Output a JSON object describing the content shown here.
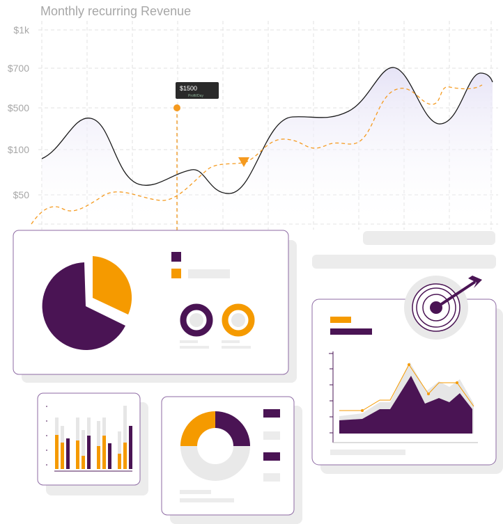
{
  "header": {
    "title": "Monthly recurring Revenue"
  },
  "axis": {
    "labels": [
      "$1k",
      "$700",
      "$500",
      "$100",
      "$50"
    ]
  },
  "tooltip": {
    "value": "$1500",
    "caption": "Profit/Day"
  }
}
